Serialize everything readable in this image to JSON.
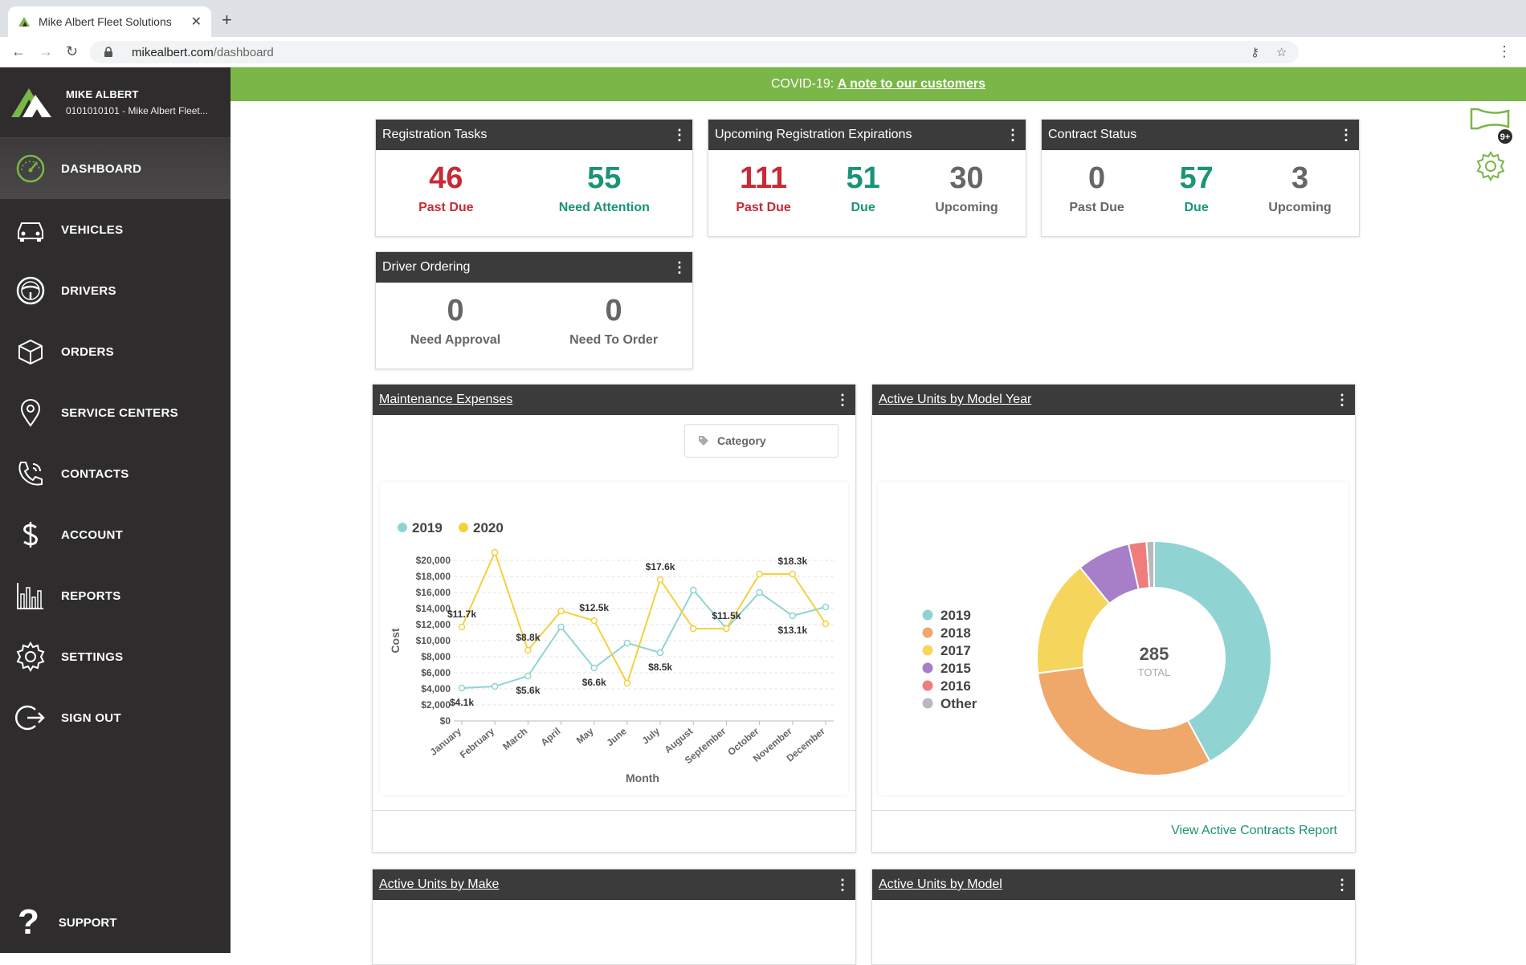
{
  "browser": {
    "tab_title": "Mike Albert Fleet Solutions",
    "url_host": "mikealbert.com",
    "url_path": "/dashboard"
  },
  "user": {
    "name": "MIKE ALBERT",
    "account": "0101010101 - Mike Albert Fleet..."
  },
  "nav": [
    {
      "label": "DASHBOARD",
      "icon": "speedometer-icon"
    },
    {
      "label": "VEHICLES",
      "icon": "car-icon"
    },
    {
      "label": "DRIVERS",
      "icon": "steering-wheel-icon"
    },
    {
      "label": "ORDERS",
      "icon": "box-icon"
    },
    {
      "label": "SERVICE CENTERS",
      "icon": "map-pin-icon"
    },
    {
      "label": "CONTACTS",
      "icon": "phone-icon"
    },
    {
      "label": "ACCOUNT",
      "icon": "dollar-icon"
    },
    {
      "label": "REPORTS",
      "icon": "bar-chart-icon"
    },
    {
      "label": "SETTINGS",
      "icon": "gear-icon"
    },
    {
      "label": "SIGN OUT",
      "icon": "sign-out-icon"
    }
  ],
  "support_label": "SUPPORT",
  "banner": {
    "prefix": "COVID-19: ",
    "link": "A note to our customers"
  },
  "notification_count": "9+",
  "cards": {
    "registration_tasks": {
      "title": "Registration Tasks",
      "stats": [
        {
          "num": "46",
          "label": "Past Due"
        },
        {
          "num": "55",
          "label": "Need Attention"
        }
      ]
    },
    "upcoming_reg": {
      "title": "Upcoming Registration Expirations",
      "stats": [
        {
          "num": "111",
          "label": "Past Due"
        },
        {
          "num": "51",
          "label": "Due"
        },
        {
          "num": "30",
          "label": "Upcoming"
        }
      ]
    },
    "contract_status": {
      "title": "Contract Status",
      "stats": [
        {
          "num": "0",
          "label": "Past Due"
        },
        {
          "num": "57",
          "label": "Due"
        },
        {
          "num": "3",
          "label": "Upcoming"
        }
      ]
    },
    "driver_ordering": {
      "title": "Driver Ordering",
      "stats": [
        {
          "num": "0",
          "label": "Need Approval"
        },
        {
          "num": "0",
          "label": "Need To Order"
        }
      ]
    },
    "maintenance": {
      "title": "Maintenance Expenses",
      "category_placeholder": "Category"
    },
    "model_year": {
      "title": "Active Units by Model Year",
      "center_value": "285",
      "center_label": "TOTAL",
      "footer_link": "View Active Contracts Report"
    },
    "make": {
      "title": "Active Units by Make"
    },
    "model": {
      "title": "Active Units by Model"
    }
  },
  "colors": {
    "green": "#7ab648",
    "red": "#c62b36",
    "teal": "#1a9476",
    "y2019": "#8fd4d3",
    "y2020": "#f4d03f"
  },
  "chart_data": [
    {
      "type": "line",
      "xlabel": "Month",
      "ylabel": "Cost",
      "ylim": [
        0,
        20000
      ],
      "yticks": [
        "$0",
        "$2,000",
        "$4,000",
        "$6,000",
        "$8,000",
        "$10,000",
        "$12,000",
        "$14,000",
        "$16,000",
        "$18,000",
        "$20,000"
      ],
      "categories": [
        "January",
        "February",
        "March",
        "April",
        "May",
        "June",
        "July",
        "August",
        "September",
        "October",
        "November",
        "December"
      ],
      "series": [
        {
          "name": "2019",
          "color": "#8fd4d3",
          "values": [
            4100,
            4300,
            5600,
            11700,
            6600,
            9700,
            8500,
            16300,
            11500,
            16000,
            13100,
            14200
          ]
        },
        {
          "name": "2020",
          "color": "#f4d03f",
          "values": [
            11700,
            21000,
            8800,
            13700,
            12500,
            4700,
            17600,
            11500,
            11500,
            18300,
            18300,
            12100
          ]
        }
      ],
      "data_labels": [
        {
          "text": "$4.1k",
          "series": 0,
          "index": 0
        },
        {
          "text": "$11.7k",
          "series": 1,
          "index": 0
        },
        {
          "text": "$5.6k",
          "series": 0,
          "index": 2
        },
        {
          "text": "$8.8k",
          "series": 1,
          "index": 2
        },
        {
          "text": "$12.5k",
          "series": 1,
          "index": 4
        },
        {
          "text": "$6.6k",
          "series": 0,
          "index": 4
        },
        {
          "text": "$17.6k",
          "series": 1,
          "index": 6
        },
        {
          "text": "$8.5k",
          "series": 0,
          "index": 6
        },
        {
          "text": "$11.5k",
          "series": 1,
          "index": 8
        },
        {
          "text": "$18.3k",
          "series": 1,
          "index": 10
        },
        {
          "text": "$13.1k",
          "series": 0,
          "index": 10
        }
      ],
      "legend": "top-left"
    },
    {
      "type": "pie",
      "labels": [
        "2019",
        "2018",
        "2017",
        "2015",
        "2016",
        "Other"
      ],
      "values": [
        120,
        88,
        46,
        21,
        7,
        3
      ],
      "colors": [
        "#8fd4d3",
        "#efa86a",
        "#f6d55c",
        "#a77fc8",
        "#ef7d7d",
        "#b9b9bd"
      ],
      "total": "285",
      "legend": "left"
    }
  ]
}
